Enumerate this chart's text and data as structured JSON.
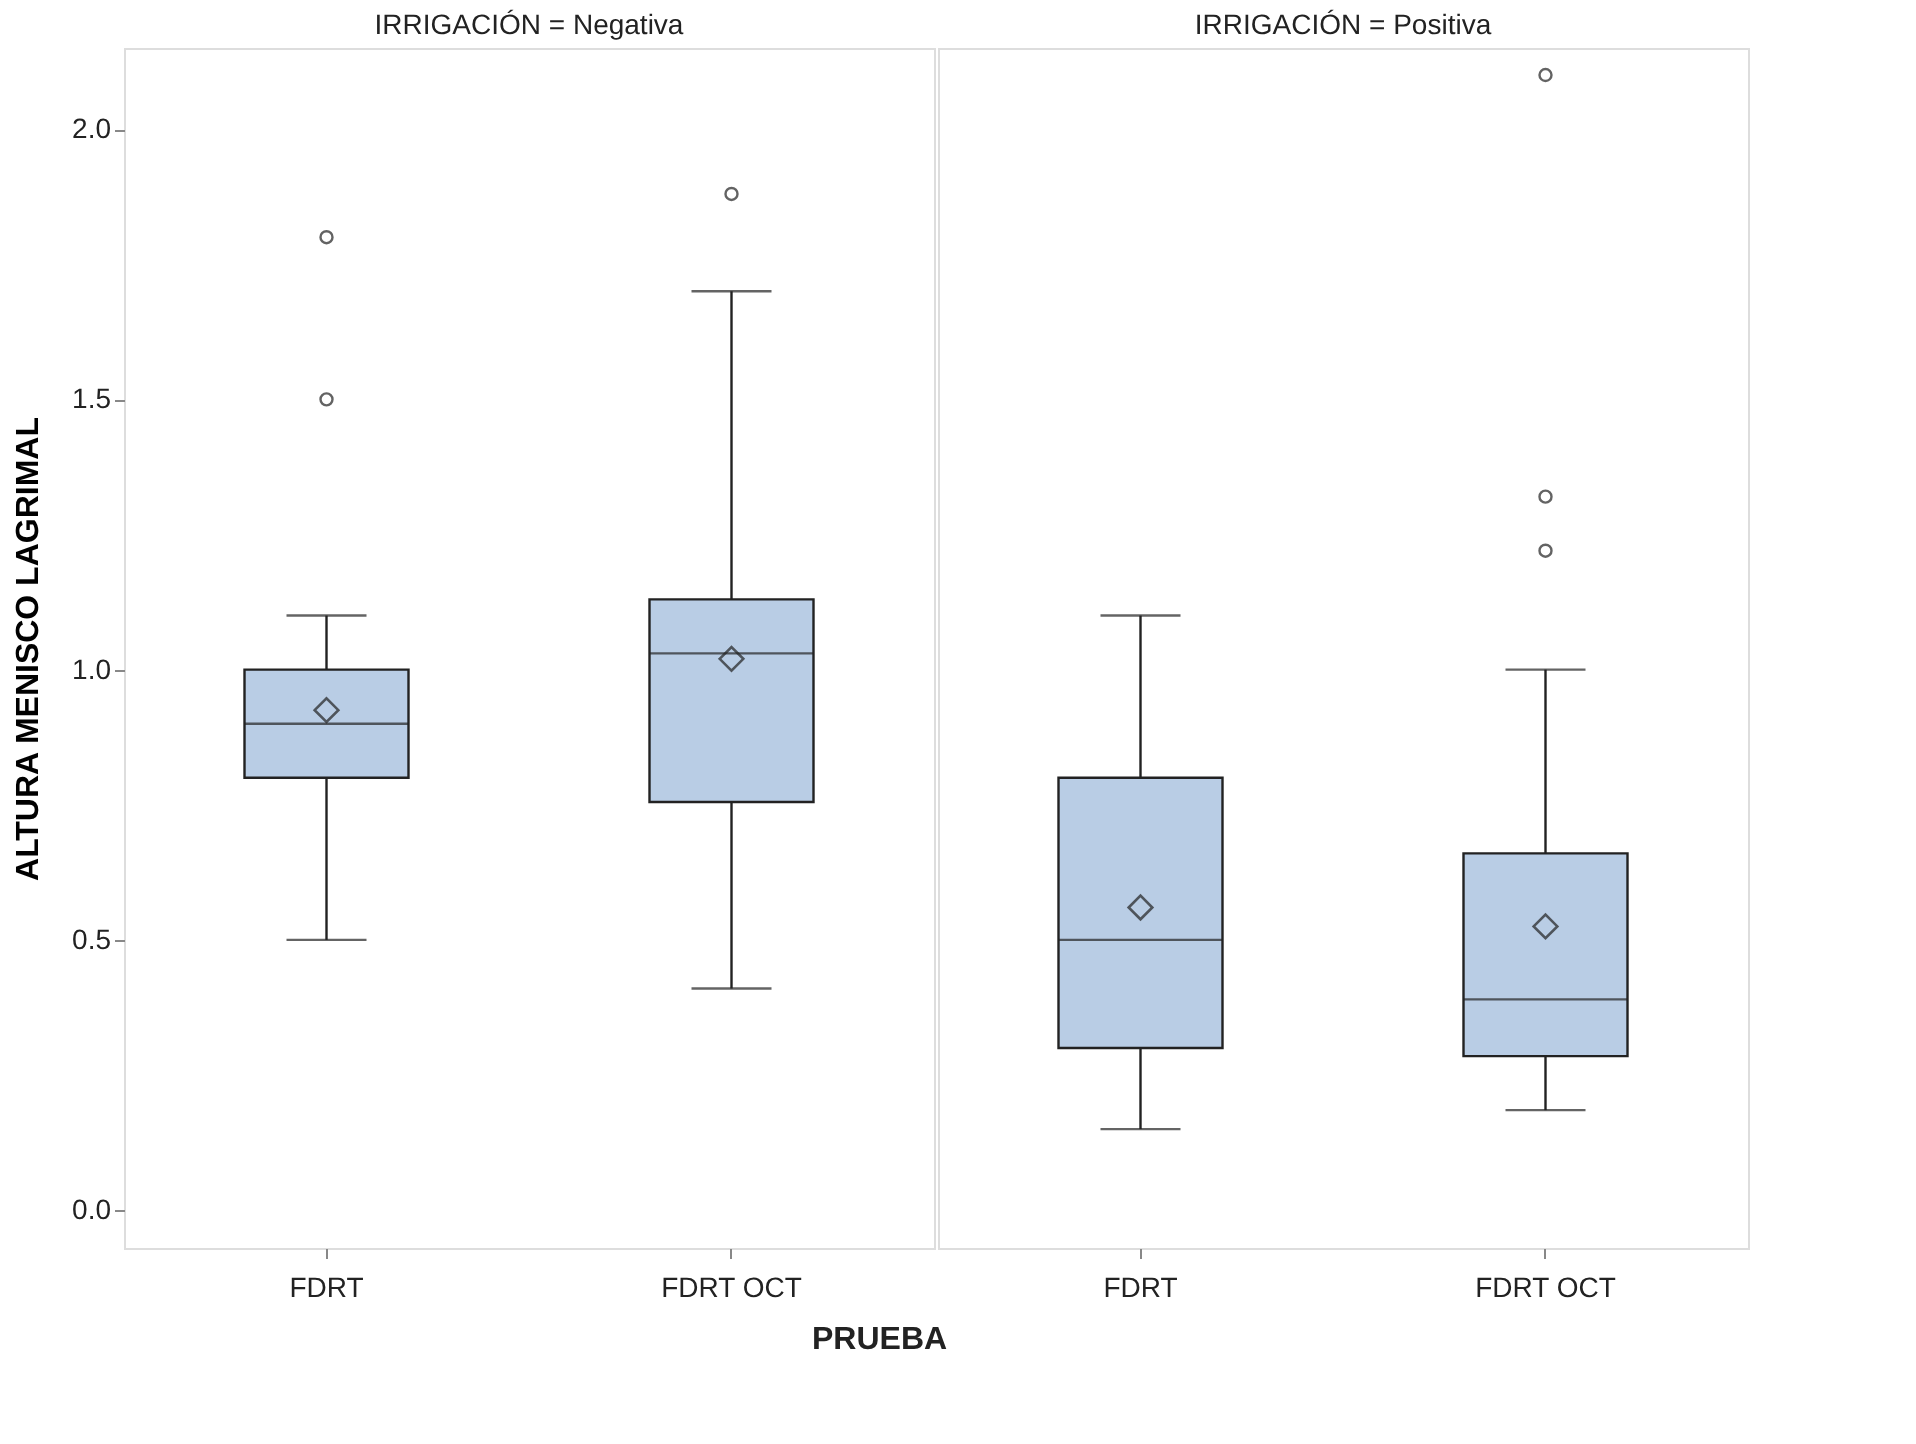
{
  "chart_data": [
    {
      "type": "box",
      "title": "IRRIGACIÓN = Negativa",
      "xlabel": "PRUEBA",
      "ylabel": "ALTURA MENISCO LAGRIMAL",
      "categories": [
        "FDRT",
        "FDRT OCT"
      ],
      "color": "#b9cde5",
      "ylim": [
        -0.07,
        2.15
      ],
      "yticks": [
        {
          "value": 0,
          "label": "0.0"
        },
        {
          "value": 0.5,
          "label": "0.5"
        },
        {
          "value": 1,
          "label": "1.0"
        },
        {
          "value": 1.5,
          "label": "1.5"
        },
        {
          "value": 2,
          "label": "2.0"
        }
      ],
      "grid": false,
      "boxes": [
        {
          "low": 0.5,
          "q1": 0.8,
          "median": 0.9,
          "q3": 1.0,
          "high": 1.1,
          "mean": 0.925,
          "outliers": [
            1.5,
            1.8
          ]
        },
        {
          "low": 0.41,
          "q1": 0.755,
          "median": 1.03,
          "q3": 1.13,
          "high": 1.7,
          "mean": 1.02,
          "outliers": [
            1.88
          ]
        }
      ]
    },
    {
      "type": "box",
      "title": "IRRIGACIÓN = Positiva",
      "categories": [
        "FDRT",
        "FDRT OCT"
      ],
      "color": "#b9cde5",
      "ylim": [
        -0.07,
        2.15
      ],
      "grid": false,
      "tick_labels": "x",
      "boxes": [
        {
          "low": 0.15,
          "q1": 0.3,
          "median": 0.5,
          "q3": 0.8,
          "high": 1.1,
          "mean": 0.56
        },
        {
          "low": 0.185,
          "q1": 0.285,
          "median": 0.39,
          "q3": 0.66,
          "high": 1.0,
          "mean": 0.525,
          "outliers": [
            1.22,
            1.32,
            2.1
          ]
        }
      ]
    }
  ]
}
